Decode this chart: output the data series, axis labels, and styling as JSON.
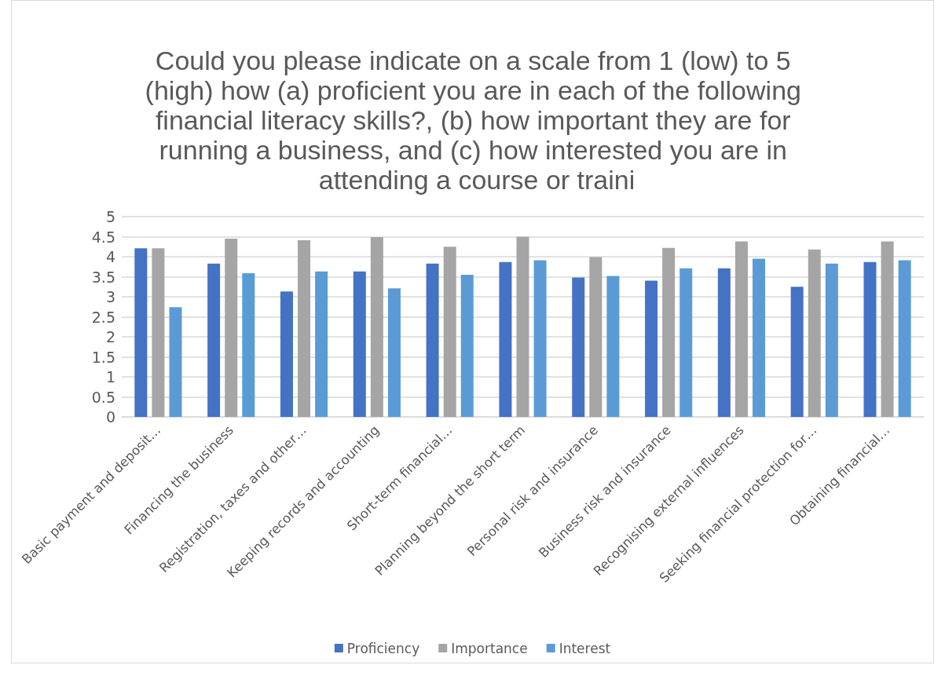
{
  "chart_data": {
    "type": "bar",
    "title": "Could you please indicate on a scale from 1 (low) to 5 (high) how (a) proficient you are in each of the following financial literacy skills?, (b) how important they are for running a business, and (c) how interested you are in attending a course or traini",
    "categories": [
      "Basic payment and deposit…",
      "Financing the business",
      "Registration, taxes and other…",
      "Keeping records and accounting",
      "Short-term financial…",
      "Planning beyond the short term",
      "Personal risk and insurance",
      "Business risk and insurance",
      "Recognising external influences",
      "Seeking financial protection for…",
      "Obtaining financial…"
    ],
    "series": [
      {
        "name": "Proficiency",
        "color": "#4472c4",
        "values": [
          4.21,
          3.83,
          3.13,
          3.63,
          3.83,
          3.87,
          3.48,
          3.4,
          3.71,
          3.25,
          3.87
        ]
      },
      {
        "name": "Importance",
        "color": "#a5a5a5",
        "values": [
          4.21,
          4.45,
          4.41,
          4.49,
          4.25,
          4.5,
          3.99,
          4.22,
          4.38,
          4.18,
          4.38
        ]
      },
      {
        "name": "Interest",
        "color": "#5b9bd5",
        "values": [
          2.74,
          3.59,
          3.63,
          3.21,
          3.55,
          3.91,
          3.52,
          3.71,
          3.95,
          3.83,
          3.91
        ]
      }
    ],
    "ylim": [
      0,
      5
    ],
    "yticks": [
      0,
      0.5,
      1,
      1.5,
      2,
      2.5,
      3,
      3.5,
      4,
      4.5,
      5
    ],
    "grid": "y",
    "legend": "bottom"
  }
}
